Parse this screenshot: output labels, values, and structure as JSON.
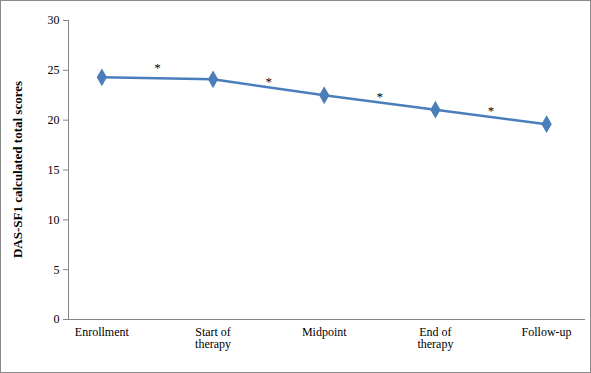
{
  "chart_data": {
    "type": "line",
    "y_label": "DAS-SF1 calculated total scores",
    "categories": [
      "Enrollment",
      "Start of therapy",
      "Midpoint",
      "End of therapy",
      "Follow-up"
    ],
    "values": [
      24.3,
      24.1,
      22.5,
      21.05,
      19.6
    ],
    "color": "#4a7ebb",
    "marker": "diamond",
    "ylim": [
      0,
      30
    ],
    "yticks": [
      0,
      5,
      10,
      15,
      20,
      25,
      30
    ],
    "grid": false,
    "annotations": [
      {
        "text": "*",
        "between": [
          "Enrollment",
          "Start of therapy"
        ],
        "y": 25.3
      },
      {
        "text": "*",
        "between": [
          "Start of therapy",
          "Midpoint"
        ],
        "y": 23.8
      },
      {
        "text": "*",
        "between": [
          "Midpoint",
          "End of therapy"
        ],
        "y": 22.3
      },
      {
        "text": "*",
        "between": [
          "End of therapy",
          "Follow-up"
        ],
        "y": 20.9
      }
    ]
  }
}
